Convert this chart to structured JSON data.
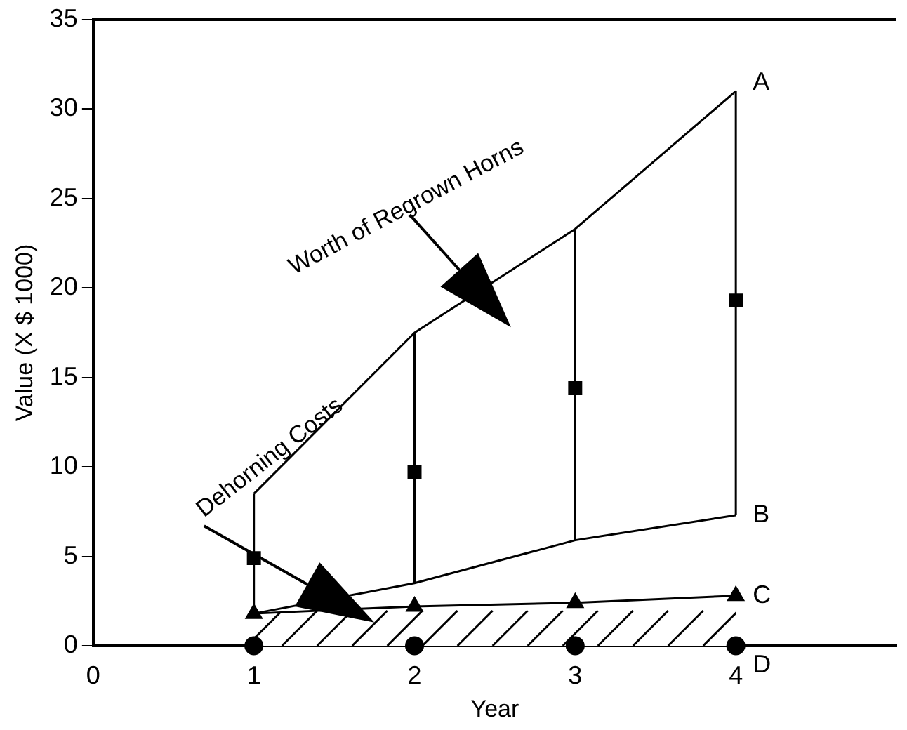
{
  "chart_data": {
    "type": "line",
    "xlabel": "Year",
    "ylabel": "Value (X $ 1000)",
    "x": [
      1,
      2,
      3,
      4
    ],
    "xlim": [
      0,
      5
    ],
    "xticks": [
      0,
      1,
      2,
      3,
      4
    ],
    "ylim": [
      0,
      35
    ],
    "yticks": [
      0,
      5,
      10,
      15,
      20,
      25,
      30,
      35
    ],
    "grid": false,
    "legend": false,
    "annotations": [
      "Worth of Regrown Horns",
      "Dehorning Costs"
    ],
    "series": [
      {
        "name": "A",
        "type": "line",
        "color": "#000000",
        "marker": "none",
        "values": [
          8.5,
          17.5,
          23.3,
          31.0
        ]
      },
      {
        "name": "B",
        "type": "line",
        "color": "#000000",
        "marker": "none",
        "values": [
          1.8,
          3.5,
          5.9,
          7.3
        ]
      },
      {
        "type": "scatter",
        "color": "#000000",
        "marker": "square",
        "values": [
          4.9,
          9.7,
          14.4,
          19.3
        ],
        "errors": [
          [
            1.8,
            8.5
          ],
          [
            3.5,
            17.5
          ],
          [
            5.9,
            23.3
          ],
          [
            7.3,
            31.0
          ]
        ]
      },
      {
        "name": "C",
        "type": "area",
        "color": "#000000",
        "marker": "triangle",
        "values": [
          1.8,
          2.2,
          2.4,
          2.8
        ]
      },
      {
        "name": "D",
        "type": "scatter",
        "color": "#000000",
        "marker": "circle",
        "values": [
          0,
          0,
          0,
          0
        ]
      }
    ]
  }
}
